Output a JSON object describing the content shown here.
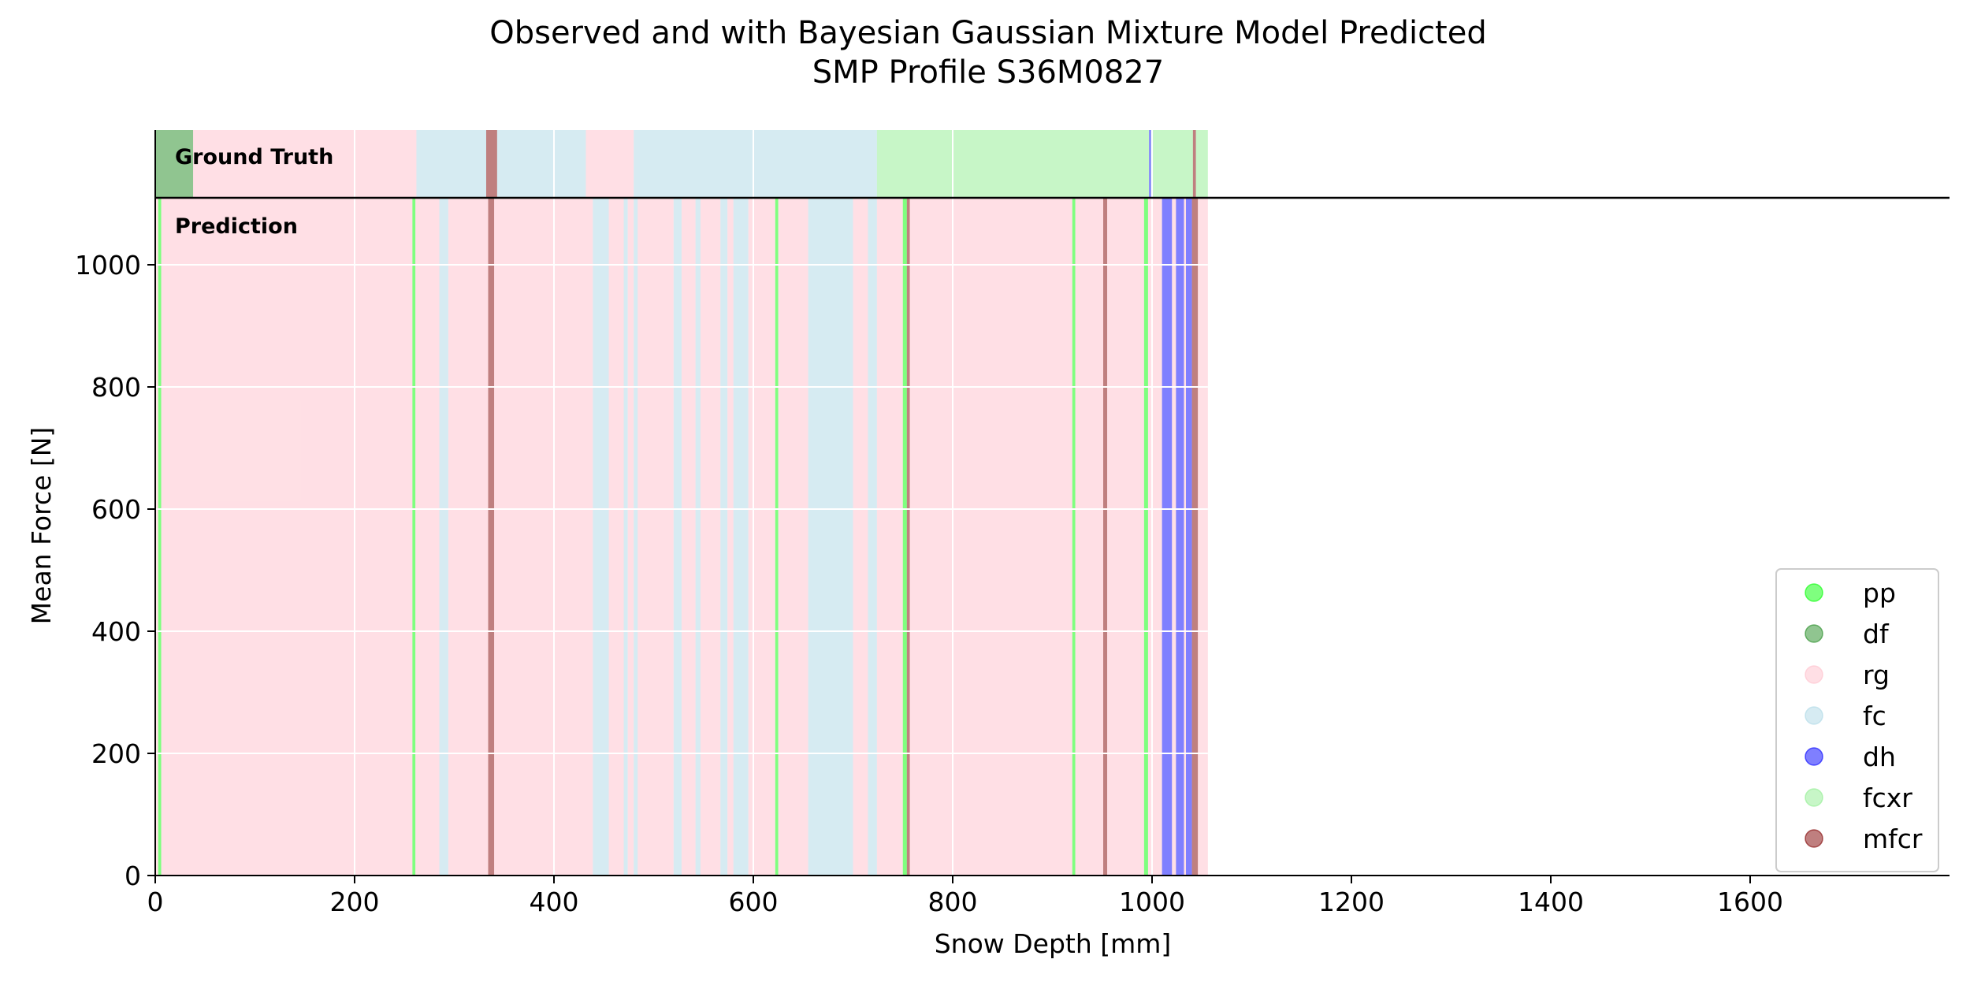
{
  "chart_data": {
    "type": "area",
    "title": "Observed and with Bayesian Gaussian Mixture Model Predicted",
    "subtitle": "SMP Profile S36M0827",
    "xlabel": "Snow Depth [mm]",
    "ylabel": "Mean Force [N]",
    "xlim": [
      0,
      1800
    ],
    "ylim": [
      0,
      1000
    ],
    "x_ticks": [
      0,
      200,
      400,
      600,
      800,
      1000,
      1200,
      1400,
      1600
    ],
    "y_ticks": [
      0,
      200,
      400,
      600,
      800,
      1000
    ],
    "grid": true,
    "legend_position": "bottom-right",
    "profile_end_mm": 1056,
    "band_labels": {
      "ground_truth": "Ground Truth",
      "prediction": "Prediction"
    },
    "classes": [
      {
        "name": "pp",
        "color": "#00ff00"
      },
      {
        "name": "df",
        "color": "#228b22"
      },
      {
        "name": "rg",
        "color": "#ffc0cb"
      },
      {
        "name": "fc",
        "color": "#add8e6"
      },
      {
        "name": "dh",
        "color": "#0000ff"
      },
      {
        "name": "fcxr",
        "color": "#90ee90"
      },
      {
        "name": "mfcr",
        "color": "#800000"
      }
    ],
    "ground_truth_segments": [
      {
        "start": 0,
        "end": 38,
        "label": "df"
      },
      {
        "start": 38,
        "end": 262,
        "label": "rg"
      },
      {
        "start": 262,
        "end": 332,
        "label": "fc"
      },
      {
        "start": 332,
        "end": 343,
        "label": "mfcr"
      },
      {
        "start": 343,
        "end": 432,
        "label": "fc"
      },
      {
        "start": 432,
        "end": 480,
        "label": "rg"
      },
      {
        "start": 480,
        "end": 724,
        "label": "fc"
      },
      {
        "start": 724,
        "end": 997,
        "label": "fcxr"
      },
      {
        "start": 997,
        "end": 999,
        "label": "dh"
      },
      {
        "start": 999,
        "end": 1041,
        "label": "fcxr"
      },
      {
        "start": 1041,
        "end": 1044,
        "label": "mfcr"
      },
      {
        "start": 1044,
        "end": 1056,
        "label": "fcxr"
      }
    ],
    "prediction_segments": [
      {
        "start": 0,
        "end": 3,
        "label": "rg"
      },
      {
        "start": 3,
        "end": 6,
        "label": "pp"
      },
      {
        "start": 6,
        "end": 258,
        "label": "rg"
      },
      {
        "start": 258,
        "end": 261,
        "label": "pp"
      },
      {
        "start": 261,
        "end": 285,
        "label": "rg"
      },
      {
        "start": 285,
        "end": 294,
        "label": "fc"
      },
      {
        "start": 294,
        "end": 334,
        "label": "rg"
      },
      {
        "start": 334,
        "end": 340,
        "label": "mfcr"
      },
      {
        "start": 340,
        "end": 439,
        "label": "rg"
      },
      {
        "start": 439,
        "end": 455,
        "label": "fc"
      },
      {
        "start": 455,
        "end": 470,
        "label": "rg"
      },
      {
        "start": 470,
        "end": 474,
        "label": "fc"
      },
      {
        "start": 474,
        "end": 480,
        "label": "rg"
      },
      {
        "start": 480,
        "end": 484,
        "label": "fc"
      },
      {
        "start": 484,
        "end": 520,
        "label": "rg"
      },
      {
        "start": 520,
        "end": 528,
        "label": "fc"
      },
      {
        "start": 528,
        "end": 542,
        "label": "rg"
      },
      {
        "start": 542,
        "end": 547,
        "label": "fc"
      },
      {
        "start": 547,
        "end": 567,
        "label": "rg"
      },
      {
        "start": 567,
        "end": 574,
        "label": "fc"
      },
      {
        "start": 574,
        "end": 580,
        "label": "rg"
      },
      {
        "start": 580,
        "end": 595,
        "label": "fc"
      },
      {
        "start": 595,
        "end": 622,
        "label": "rg"
      },
      {
        "start": 622,
        "end": 625,
        "label": "pp"
      },
      {
        "start": 625,
        "end": 655,
        "label": "rg"
      },
      {
        "start": 655,
        "end": 700,
        "label": "fc"
      },
      {
        "start": 700,
        "end": 715,
        "label": "rg"
      },
      {
        "start": 715,
        "end": 724,
        "label": "fc"
      },
      {
        "start": 724,
        "end": 750,
        "label": "rg"
      },
      {
        "start": 750,
        "end": 754,
        "label": "pp"
      },
      {
        "start": 754,
        "end": 757,
        "label": "mfcr"
      },
      {
        "start": 757,
        "end": 920,
        "label": "rg"
      },
      {
        "start": 920,
        "end": 923,
        "label": "pp"
      },
      {
        "start": 923,
        "end": 951,
        "label": "rg"
      },
      {
        "start": 951,
        "end": 955,
        "label": "mfcr"
      },
      {
        "start": 955,
        "end": 992,
        "label": "rg"
      },
      {
        "start": 992,
        "end": 996,
        "label": "pp"
      },
      {
        "start": 996,
        "end": 1010,
        "label": "rg"
      },
      {
        "start": 1010,
        "end": 1020,
        "label": "dh"
      },
      {
        "start": 1020,
        "end": 1024,
        "label": "rg"
      },
      {
        "start": 1024,
        "end": 1032,
        "label": "dh"
      },
      {
        "start": 1032,
        "end": 1034,
        "label": "rg"
      },
      {
        "start": 1034,
        "end": 1040,
        "label": "dh"
      },
      {
        "start": 1040,
        "end": 1046,
        "label": "mfcr"
      },
      {
        "start": 1046,
        "end": 1056,
        "label": "rg"
      }
    ]
  }
}
